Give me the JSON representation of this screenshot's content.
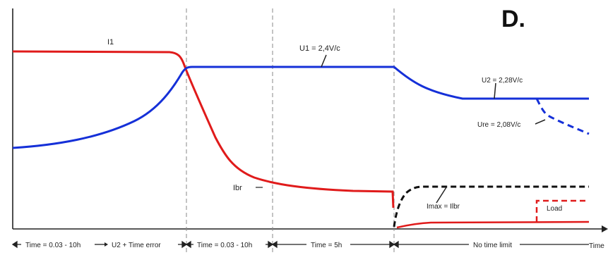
{
  "panel_label": "D.",
  "colors": {
    "current": "#e01b1b",
    "voltage": "#1530d8",
    "charge_dashed": "#111111",
    "load": "#e01b1b",
    "axis": "#222222",
    "divider": "#888888"
  },
  "chart_data": {
    "type": "line",
    "title": "",
    "xlabel": "Time",
    "ylabel": "",
    "grid": false,
    "legend": "none",
    "phases": [
      {
        "label": "Time = 0.03 - 10h",
        "extra": "U2 + Time error"
      },
      {
        "label": "Time = 0.03 - 10h",
        "extra": ""
      },
      {
        "label": "Time = 5h",
        "extra": ""
      },
      {
        "label": "No time limit",
        "extra": ""
      }
    ],
    "annotations": {
      "i1": "I1",
      "u1": "U1 = 2,4V/c",
      "u2": "U2 = 2,28V/c",
      "ure": "Ure = 2,08V/c",
      "ibr": "Ibr",
      "imax": "Imax = Ilbr",
      "load": "Load"
    },
    "series": []
  }
}
